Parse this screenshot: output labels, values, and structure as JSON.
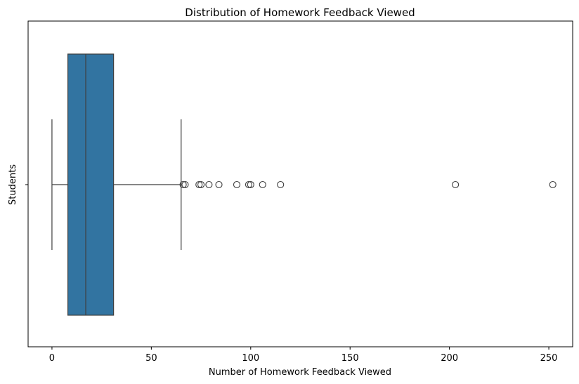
{
  "chart_data": {
    "type": "box",
    "title": "Distribution of Homework Feedback Viewed",
    "xlabel": "Number of Homework Feedback Viewed",
    "ylabel": "Students",
    "xlim": [
      -12,
      262
    ],
    "xticks": [
      0,
      50,
      100,
      150,
      200,
      250
    ],
    "grid": false,
    "orientation": "horizontal",
    "box": {
      "whisker_low": 0,
      "q1": 8,
      "median": 17,
      "q3": 31,
      "whisker_high": 65
    },
    "outliers": [
      66,
      67,
      74,
      75,
      79,
      84,
      93,
      99,
      100,
      106,
      115,
      203,
      252
    ],
    "colors": {
      "box_fill": "#3274a1",
      "lines": "#3f3f3f",
      "outlier_edge": "#3f3f3f"
    }
  }
}
